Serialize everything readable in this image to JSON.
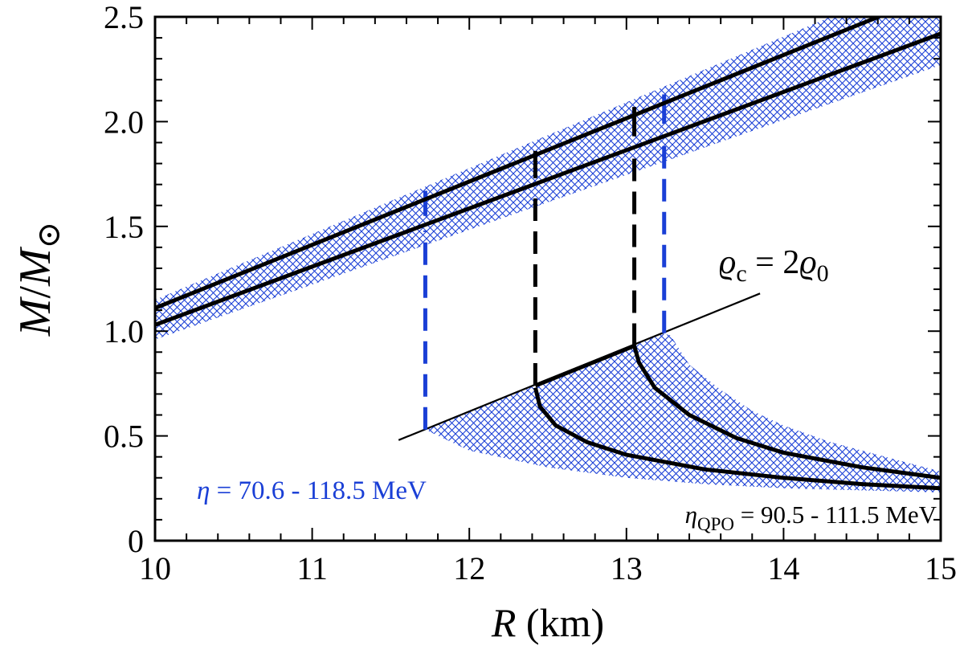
{
  "chart_data": {
    "type": "line",
    "title": "",
    "xlabel": {
      "var": "R",
      "unit": "(km)"
    },
    "ylabel": {
      "var": "M",
      "sep": "/",
      "var2": "M",
      "sub": "⊙"
    },
    "xlim": [
      10,
      15
    ],
    "ylim": [
      0,
      2.5
    ],
    "xticks": [
      "10",
      "11",
      "12",
      "13",
      "14",
      "15"
    ],
    "yticks": [
      "0",
      "0.5",
      "1.0",
      "1.5",
      "2.0",
      "2.5"
    ],
    "grid": false,
    "colors": {
      "curve": "#000000",
      "band": "#1a3fd6",
      "blue_dash": "#1a3fd6"
    },
    "curves": [
      {
        "x": [
          10,
          15
        ],
        "y": [
          1.11,
          2.62
        ]
      },
      {
        "x": [
          10,
          15
        ],
        "y": [
          1.03,
          2.42
        ]
      }
    ],
    "band": {
      "upper": {
        "x": [
          10,
          15
        ],
        "y": [
          1.15,
          2.72
        ]
      },
      "lower": {
        "x": [
          10,
          15
        ],
        "y": [
          0.96,
          2.27
        ]
      }
    },
    "density_line": {
      "x": [
        11.55,
        13.85
      ],
      "y": [
        0.48,
        1.18
      ]
    },
    "low_curves": [
      {
        "x": [
          12.42,
          12.45,
          12.55,
          12.75,
          13.0,
          13.5,
          14.0,
          14.5,
          15.0
        ],
        "y": [
          0.73,
          0.64,
          0.55,
          0.47,
          0.41,
          0.34,
          0.3,
          0.27,
          0.25
        ]
      },
      {
        "x": [
          13.05,
          13.08,
          13.18,
          13.4,
          13.7,
          14.0,
          14.5,
          15.0
        ],
        "y": [
          0.93,
          0.85,
          0.73,
          0.6,
          0.49,
          0.42,
          0.35,
          0.3
        ]
      }
    ],
    "low_band": {
      "x": [
        11.72,
        12.0,
        12.42,
        13.05,
        13.22,
        13.28,
        13.4,
        13.6,
        13.8,
        14.0,
        14.3,
        14.6,
        15.0,
        15.0,
        14.5,
        14.0,
        13.5,
        13.0,
        12.5,
        12.0,
        11.72
      ],
      "y": [
        0.53,
        0.62,
        0.74,
        0.93,
        0.99,
        0.98,
        0.84,
        0.72,
        0.62,
        0.55,
        0.47,
        0.41,
        0.33,
        0.23,
        0.24,
        0.25,
        0.27,
        0.3,
        0.35,
        0.43,
        0.53
      ]
    },
    "vlines": [
      {
        "x": 11.72,
        "y0": 0.53,
        "y1": 1.67,
        "gap": [
          1.48,
          1.55
        ],
        "color": "blue"
      },
      {
        "x": 12.42,
        "y0": 0.74,
        "y1": 1.86,
        "gap": [
          1.64,
          1.73
        ],
        "color": "black"
      },
      {
        "x": 13.05,
        "y0": 0.93,
        "y1": 2.07,
        "gap": [
          1.83,
          1.93
        ],
        "color": "black"
      },
      {
        "x": 13.24,
        "y0": 0.99,
        "y1": 2.13,
        "gap": [
          1.89,
          1.99
        ],
        "color": "blue"
      }
    ],
    "annotations": {
      "density": {
        "rho": "ϱ",
        "sub": "c",
        "eq": " = 2",
        "rho2": "ϱ",
        "sub2": "0"
      },
      "eta_blue": {
        "sym": "η",
        "text": " = 70.6 - 118.5 MeV"
      },
      "eta_qpo": {
        "sym": "η",
        "sub": "QPO",
        "text": " = 90.5 - 111.5 MeV"
      }
    }
  }
}
